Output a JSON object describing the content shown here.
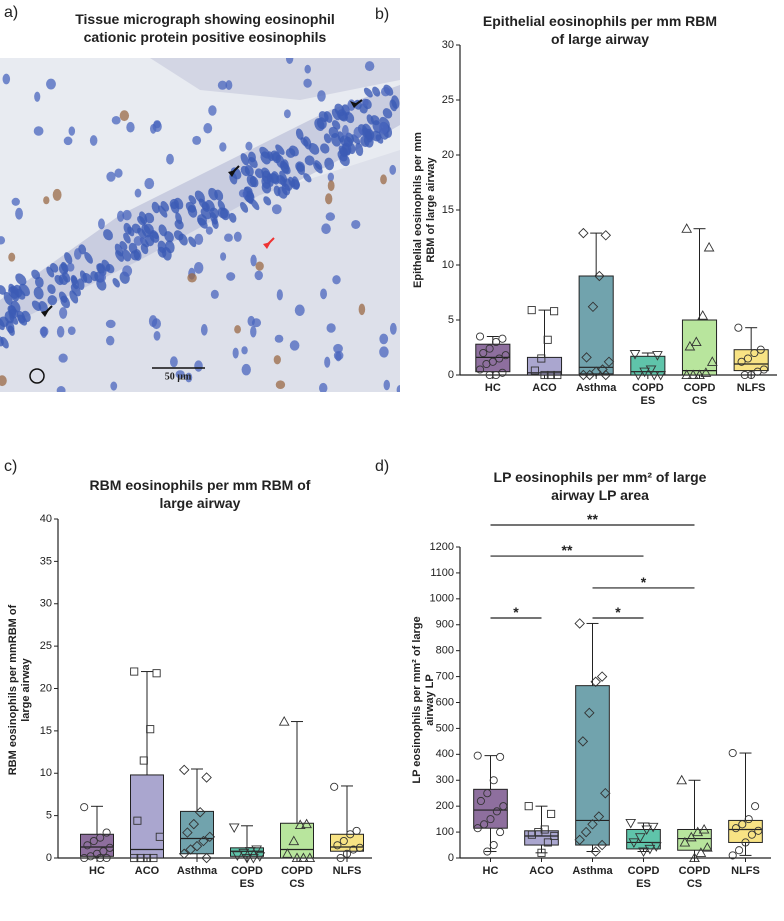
{
  "micrograph": {
    "panel_label": "a)",
    "title": "Tissue micrograph showing eosinophil cationic protein positive eosinophils",
    "scale_bar": "50 µm"
  },
  "chart_data": [
    {
      "type": "box",
      "panel_label": "b)",
      "title": "Epithelial eosinophils per mm RBM of large airway",
      "y_label": "Epithelial eosinophils per mm RBM of large airway",
      "categories": [
        "HC",
        "ACO",
        "Asthma",
        "COPD ES",
        "COPD CS",
        "NLFS"
      ],
      "ylim": [
        0,
        30
      ],
      "yticks": [
        0,
        5,
        10,
        15,
        20,
        25,
        30
      ],
      "boxes": [
        {
          "color": "#8e6f9e",
          "marker": "circle",
          "min": 0,
          "q1": 0.3,
          "median": 1.6,
          "q3": 2.8,
          "max": 3.5,
          "points": [
            3.5,
            3.3,
            3.0,
            2.4,
            2.0,
            1.8,
            1.5,
            1.2,
            1.0,
            0.5,
            0.2,
            0,
            0
          ]
        },
        {
          "color": "#aaa6cf",
          "marker": "square",
          "min": 0,
          "q1": 0,
          "median": 0.2,
          "q3": 1.6,
          "max": 5.9,
          "points": [
            5.9,
            5.8,
            3.2,
            1.5,
            0.4,
            0,
            0,
            0
          ]
        },
        {
          "color": "#71a3ad",
          "marker": "diamond",
          "min": 0,
          "q1": 0.1,
          "median": 0.7,
          "q3": 9.0,
          "max": 12.9,
          "points": [
            12.9,
            12.7,
            9.0,
            6.2,
            1.6,
            1.2,
            0.5,
            0.3,
            0,
            0,
            0
          ]
        },
        {
          "color": "#5fc4aa",
          "marker": "triangle-down",
          "min": 0,
          "q1": 0,
          "median": 0.3,
          "q3": 1.7,
          "max": 2.0,
          "points": [
            1.9,
            1.8,
            0.5,
            0.3,
            0,
            0,
            0
          ]
        },
        {
          "color": "#b8e59d",
          "marker": "triangle-up",
          "min": 0,
          "q1": 0,
          "median": 0.4,
          "q3": 5.0,
          "max": 13.3,
          "points": [
            13.3,
            11.6,
            5.4,
            3.0,
            2.6,
            1.2,
            0.2,
            0,
            0,
            0
          ]
        },
        {
          "color": "#f8e384",
          "marker": "circle",
          "min": 0,
          "q1": 0.4,
          "median": 1.0,
          "q3": 2.3,
          "max": 4.3,
          "points": [
            4.3,
            2.3,
            2.0,
            1.5,
            1.2,
            0.5,
            0.3,
            0,
            0
          ]
        }
      ]
    },
    {
      "type": "box",
      "panel_label": "c)",
      "title": "RBM eosinophils per mm RBM of large airway",
      "y_label": "RBM eosinophils per mmRBM of large airway",
      "categories": [
        "HC",
        "ACO",
        "Asthma",
        "COPD ES",
        "COPD CS",
        "NLFS"
      ],
      "ylim": [
        0,
        40
      ],
      "yticks": [
        0,
        5,
        10,
        15,
        20,
        25,
        30,
        35,
        40
      ],
      "boxes": [
        {
          "color": "#8e6f9e",
          "marker": "circle",
          "min": 0,
          "q1": 0.2,
          "median": 1.3,
          "q3": 2.8,
          "max": 6.1,
          "points": [
            6.0,
            3.0,
            2.4,
            2.0,
            1.5,
            1.2,
            0.8,
            0.5,
            0.2,
            0,
            0,
            0
          ]
        },
        {
          "color": "#aaa6cf",
          "marker": "square",
          "min": 0,
          "q1": 0,
          "median": 1.0,
          "q3": 9.8,
          "max": 22,
          "points": [
            22,
            21.8,
            15.2,
            11.5,
            4.4,
            2.5,
            0,
            0,
            0,
            0
          ]
        },
        {
          "color": "#71a3ad",
          "marker": "diamond",
          "min": 0,
          "q1": 0.5,
          "median": 2.3,
          "q3": 5.5,
          "max": 10.5,
          "points": [
            10.4,
            9.5,
            5.4,
            4.0,
            3.0,
            2.5,
            2.0,
            1.4,
            1.0,
            0.5,
            0
          ]
        },
        {
          "color": "#5fc4aa",
          "marker": "triangle-down",
          "min": 0,
          "q1": 0.2,
          "median": 0.8,
          "q3": 1.2,
          "max": 3.8,
          "points": [
            3.6,
            1.0,
            0.8,
            0.6,
            0.3,
            0.2,
            0,
            0
          ]
        },
        {
          "color": "#b8e59d",
          "marker": "triangle-up",
          "min": 0,
          "q1": 0,
          "median": 1.0,
          "q3": 4.1,
          "max": 16.1,
          "points": [
            16.1,
            4.0,
            3.9,
            2.0,
            0.5,
            0,
            0,
            0
          ]
        },
        {
          "color": "#f8e384",
          "marker": "circle",
          "min": 0,
          "q1": 0.8,
          "median": 1.3,
          "q3": 2.8,
          "max": 8.5,
          "points": [
            8.4,
            3.2,
            2.8,
            2.0,
            1.5,
            1.2,
            1.0,
            0.5,
            0
          ]
        }
      ]
    },
    {
      "type": "box",
      "panel_label": "d)",
      "title": "LP eosinophils per mm² of large airway LP area",
      "y_label": "LP eosinophils per mm² of large airway LP",
      "categories": [
        "HC",
        "ACO",
        "Asthma",
        "COPD ES",
        "COPD CS",
        "NLFS"
      ],
      "ylim": [
        0,
        1200
      ],
      "yticks": [
        0,
        100,
        200,
        300,
        400,
        500,
        600,
        700,
        800,
        900,
        1000,
        1100,
        1200
      ],
      "boxes": [
        {
          "color": "#8e6f9e",
          "marker": "circle",
          "min": 25,
          "q1": 115,
          "median": 185,
          "q3": 265,
          "max": 395,
          "points": [
            395,
            390,
            300,
            250,
            220,
            200,
            180,
            150,
            130,
            115,
            100,
            50,
            25
          ]
        },
        {
          "color": "#aaa6cf",
          "marker": "square",
          "min": 20,
          "q1": 50,
          "median": 85,
          "q3": 105,
          "max": 200,
          "points": [
            200,
            170,
            110,
            100,
            90,
            85,
            60,
            20
          ]
        },
        {
          "color": "#71a3ad",
          "marker": "diamond",
          "min": 25,
          "q1": 50,
          "median": 145,
          "q3": 665,
          "max": 905,
          "points": [
            905,
            700,
            680,
            560,
            450,
            250,
            160,
            130,
            100,
            70,
            50,
            25
          ]
        },
        {
          "color": "#5fc4aa",
          "marker": "triangle-down",
          "min": 25,
          "q1": 35,
          "median": 60,
          "q3": 110,
          "max": 135,
          "points": [
            135,
            120,
            110,
            80,
            60,
            45,
            35,
            25
          ]
        },
        {
          "color": "#b8e59d",
          "marker": "triangle-up",
          "min": 0,
          "q1": 30,
          "median": 75,
          "q3": 110,
          "max": 300,
          "points": [
            300,
            110,
            100,
            80,
            60,
            40,
            20,
            0
          ]
        },
        {
          "color": "#f8e384",
          "marker": "circle",
          "min": 10,
          "q1": 60,
          "median": 110,
          "q3": 145,
          "max": 405,
          "points": [
            405,
            200,
            150,
            130,
            115,
            105,
            90,
            60,
            30,
            10
          ]
        }
      ],
      "significance": [
        {
          "from": "HC",
          "to": "ACO",
          "y": 926,
          "label": "*"
        },
        {
          "from": "Asthma",
          "to": "COPD ES",
          "y": 926,
          "label": "*"
        },
        {
          "from": "Asthma",
          "to": "COPD CS",
          "y": 1042,
          "label": "*"
        },
        {
          "from": "HC",
          "to": "COPD ES",
          "y": 1165,
          "label": "**"
        },
        {
          "from": "HC",
          "to": "COPD CS",
          "y": 1285,
          "label": "**"
        }
      ]
    }
  ]
}
